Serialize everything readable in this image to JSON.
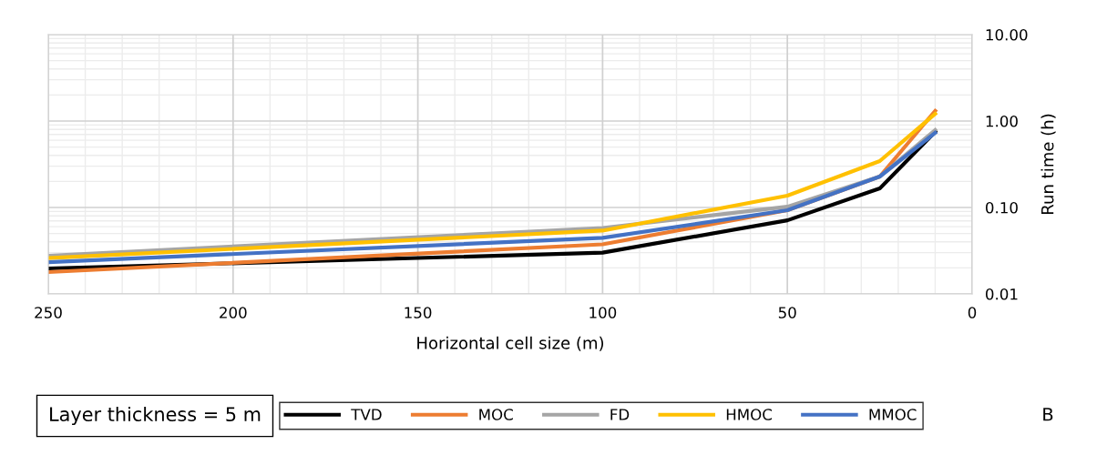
{
  "chart_data": {
    "type": "line",
    "xlabel": "Horizontal cell size (m)",
    "ylabel": "Run time (h)",
    "x": [
      250,
      100,
      50,
      25,
      10
    ],
    "series": [
      {
        "name": "TVD",
        "color": "#000000",
        "values": [
          0.0197,
          0.03,
          0.071,
          0.166,
          0.75
        ]
      },
      {
        "name": "MOC",
        "color": "#ed7d31",
        "values": [
          0.0179,
          0.0375,
          0.093,
          0.228,
          1.31
        ]
      },
      {
        "name": "FD",
        "color": "#a5a5a5",
        "values": [
          0.0277,
          0.058,
          0.102,
          0.228,
          0.785
        ]
      },
      {
        "name": "HMOC",
        "color": "#ffc000",
        "values": [
          0.026,
          0.054,
          0.137,
          0.344,
          1.21
        ]
      },
      {
        "name": "MMOC",
        "color": "#4472c4",
        "values": [
          0.0233,
          0.0445,
          0.093,
          0.228,
          0.73
        ]
      }
    ],
    "xlim": [
      250,
      0
    ],
    "xticks": [
      250,
      200,
      150,
      100,
      50,
      0
    ],
    "ylim": [
      0.01,
      10
    ],
    "yticks": [
      {
        "value": 0.01,
        "label": "0.01"
      },
      {
        "value": 0.1,
        "label": "0.10"
      },
      {
        "value": 1,
        "label": "1.00"
      },
      {
        "value": 10,
        "label": "10.00"
      }
    ],
    "log": "y",
    "grid": true,
    "legend": "bottom",
    "marker": "none",
    "line_style": "solid",
    "annotations": [
      "Layer thickness = 5 m",
      "B"
    ]
  }
}
